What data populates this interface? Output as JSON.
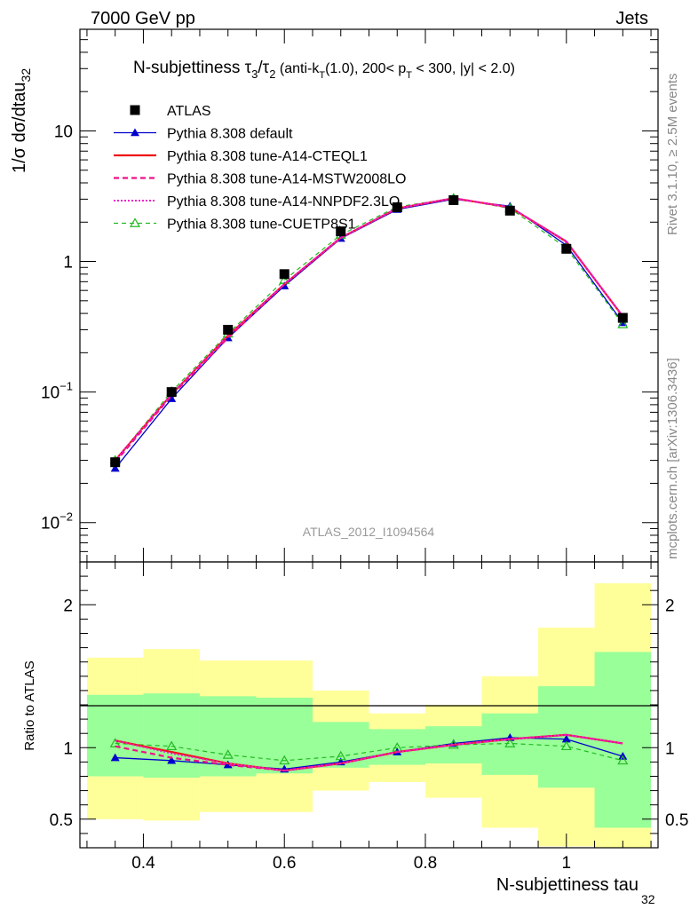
{
  "header": {
    "left": "7000 GeV pp",
    "right": "Jets"
  },
  "side_labels": {
    "rivet": "Rivet 3.1.10, ≥ 2.5M events",
    "mcplots": "mcplots.cern.ch [arXiv:1306.3436]"
  },
  "chart_data": {
    "type": "line",
    "title": "N-subjettiness τ3/τ2 (anti-kT(1.0), 200< pT < 300, |y| < 2.0)",
    "title_parts": {
      "main": "N-subjettiness τ",
      "sub1": "3",
      "slash": "/τ",
      "sub2": "2",
      "cond_a": " (anti-k",
      "cond_sub_t": "T",
      "cond_b": "(1.0), 200< p",
      "cond_sub_t2": "T",
      "cond_c": " < 300, |y| < 2.0)"
    },
    "watermark": "ATLAS_2012_I1094564",
    "xlabel": "N-subjettiness tau",
    "xlabel_sub": "32",
    "ylabel": "1/σ dσ/dtau",
    "ylabel_sub": "32",
    "ratio_ylabel": "Ratio to ATLAS",
    "xlim": [
      0.31,
      1.13
    ],
    "ylim": [
      0.005,
      60
    ],
    "yscale": "log",
    "ratio_ylim": [
      0.3,
      2.3
    ],
    "x_ticks": [
      "0.4",
      "0.6",
      "0.8",
      "1"
    ],
    "y_ticks": [
      {
        "value": 0.01,
        "base": "10",
        "exp": "−2"
      },
      {
        "value": 0.1,
        "base": "10",
        "exp": "−1"
      },
      {
        "value": 1,
        "base": "1",
        "exp": ""
      },
      {
        "value": 10,
        "base": "10",
        "exp": ""
      }
    ],
    "ratio_ticks": [
      "0.5",
      "1",
      "2"
    ],
    "x": [
      0.36,
      0.44,
      0.52,
      0.6,
      0.68,
      0.76,
      0.84,
      0.92,
      1.0,
      1.08
    ],
    "bin_edges": [
      0.32,
      0.4,
      0.48,
      0.56,
      0.64,
      0.72,
      0.8,
      0.88,
      0.96,
      1.04,
      1.12
    ],
    "band_inner": [
      [
        0.8,
        1.37
      ],
      [
        0.79,
        1.38
      ],
      [
        0.8,
        1.36
      ],
      [
        0.82,
        1.35
      ],
      [
        0.86,
        1.18
      ],
      [
        0.88,
        1.13
      ],
      [
        0.89,
        1.15
      ],
      [
        0.81,
        1.24
      ],
      [
        0.72,
        1.43
      ],
      [
        0.44,
        1.67
      ]
    ],
    "band_outer": [
      [
        0.5,
        1.63
      ],
      [
        0.49,
        1.69
      ],
      [
        0.55,
        1.61
      ],
      [
        0.55,
        1.61
      ],
      [
        0.7,
        1.4
      ],
      [
        0.76,
        1.24
      ],
      [
        0.65,
        1.3
      ],
      [
        0.44,
        1.5
      ],
      [
        0.31,
        1.84
      ],
      [
        0.3,
        2.15
      ]
    ],
    "legend_position": "top-left",
    "series": [
      {
        "name": "ATLAS",
        "style": "data",
        "color": "#000000",
        "values": [
          0.029,
          0.1,
          0.3,
          0.8,
          1.7,
          2.6,
          2.95,
          2.45,
          1.25,
          0.37
        ],
        "ratio": [
          1.0,
          1.0,
          1.0,
          1.0,
          1.0,
          1.0,
          1.0,
          1.0,
          1.0,
          1.0
        ]
      },
      {
        "name": "Pythia 8.308 default",
        "style": "blue-triangle",
        "color": "#0000cc",
        "values": [
          0.026,
          0.089,
          0.26,
          0.65,
          1.5,
          2.5,
          3.0,
          2.65,
          1.33,
          0.34
        ],
        "ratio": [
          0.93,
          0.91,
          0.88,
          0.85,
          0.9,
          0.97,
          1.03,
          1.07,
          1.06,
          0.94
        ]
      },
      {
        "name": "Pythia 8.308 tune-A14-CTEQL1",
        "style": "red-solid",
        "color": "#ee1111",
        "values": [
          0.03,
          0.096,
          0.27,
          0.67,
          1.52,
          2.55,
          3.05,
          2.6,
          1.42,
          0.38
        ],
        "ratio": [
          1.05,
          0.97,
          0.89,
          0.84,
          0.89,
          0.97,
          1.02,
          1.06,
          1.09,
          1.03
        ]
      },
      {
        "name": "Pythia 8.308 tune-A14-MSTW2008LO",
        "style": "pink-dashed",
        "color": "#ee1188",
        "values": [
          0.029,
          0.094,
          0.26,
          0.67,
          1.52,
          2.55,
          3.05,
          2.6,
          1.42,
          0.38
        ],
        "ratio": [
          1.01,
          0.93,
          0.88,
          0.84,
          0.89,
          0.97,
          1.02,
          1.06,
          1.09,
          1.03
        ]
      },
      {
        "name": "Pythia 8.308 tune-A14-NNPDF2.3LO",
        "style": "magenta-dotted",
        "color": "#ee22cc",
        "values": [
          0.03,
          0.096,
          0.27,
          0.67,
          1.52,
          2.55,
          3.05,
          2.6,
          1.43,
          0.38
        ],
        "ratio": [
          1.05,
          0.96,
          0.89,
          0.84,
          0.89,
          0.97,
          1.02,
          1.06,
          1.09,
          1.03
        ]
      },
      {
        "name": "Pythia 8.308 tune-CUETP8S1",
        "style": "green-triangle",
        "color": "#22bb22",
        "values": [
          0.03,
          0.101,
          0.28,
          0.72,
          1.6,
          2.62,
          3.05,
          2.55,
          1.27,
          0.33
        ],
        "ratio": [
          1.03,
          1.01,
          0.95,
          0.91,
          0.94,
          1.0,
          1.02,
          1.03,
          1.01,
          0.91
        ]
      }
    ]
  }
}
